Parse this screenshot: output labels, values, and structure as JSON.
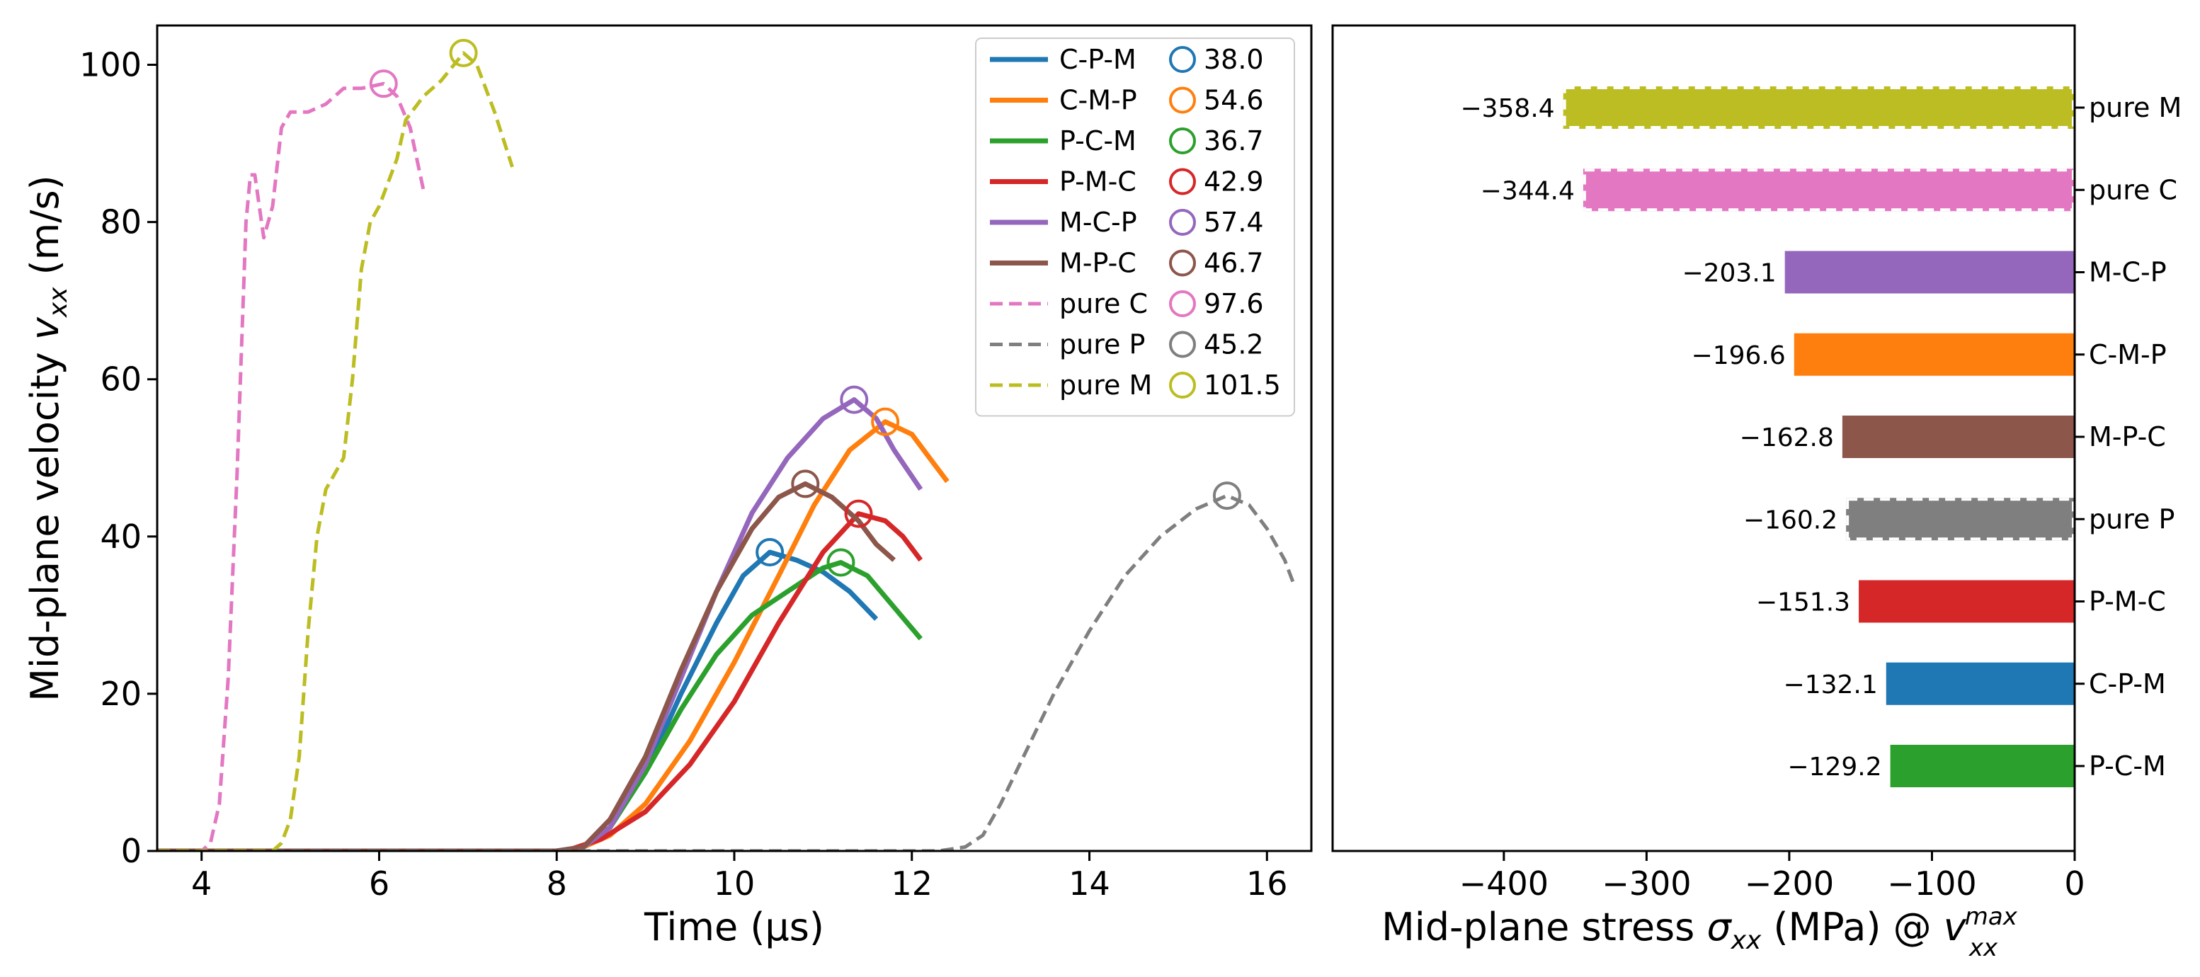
{
  "chart_data": [
    {
      "type": "line",
      "xlabel": "Time (μs)",
      "ylabel_prefix": "Mid-plane velocity ",
      "ylabel_symbol": "v",
      "ylabel_sub": "xx",
      "ylabel_suffix": " (m/s)",
      "xlim": [
        3.5,
        16.5
      ],
      "ylim": [
        0,
        105
      ],
      "xticks": [
        4,
        6,
        8,
        10,
        12,
        14,
        16
      ],
      "yticks": [
        0,
        20,
        40,
        60,
        80,
        100
      ],
      "legend_position": "top-right",
      "series": [
        {
          "name": "C-P-M",
          "color": "#1f77b4",
          "dash": false,
          "peak_label": "38.0",
          "peak": [
            10.4,
            38.0
          ],
          "points": [
            [
              3.5,
              0
            ],
            [
              8.0,
              0
            ],
            [
              8.3,
              0.5
            ],
            [
              8.6,
              3
            ],
            [
              9.0,
              10
            ],
            [
              9.4,
              20
            ],
            [
              9.8,
              29
            ],
            [
              10.1,
              35
            ],
            [
              10.4,
              38
            ],
            [
              10.7,
              37
            ],
            [
              11.0,
              35.5
            ],
            [
              11.3,
              33
            ],
            [
              11.6,
              29.5
            ]
          ]
        },
        {
          "name": "C-M-P",
          "color": "#ff7f0e",
          "dash": false,
          "peak_label": "54.6",
          "peak": [
            11.7,
            54.6
          ],
          "points": [
            [
              3.5,
              0
            ],
            [
              8.2,
              0
            ],
            [
              8.6,
              2
            ],
            [
              9.0,
              6
            ],
            [
              9.5,
              14
            ],
            [
              10.0,
              24
            ],
            [
              10.5,
              35
            ],
            [
              10.9,
              44
            ],
            [
              11.3,
              51
            ],
            [
              11.7,
              54.6
            ],
            [
              12.0,
              53
            ],
            [
              12.2,
              50
            ],
            [
              12.4,
              47
            ]
          ]
        },
        {
          "name": "P-C-M",
          "color": "#2ca02c",
          "dash": false,
          "peak_label": "36.7",
          "peak": [
            11.2,
            36.7
          ],
          "points": [
            [
              3.5,
              0
            ],
            [
              8.0,
              0
            ],
            [
              8.3,
              0.5
            ],
            [
              8.6,
              3
            ],
            [
              9.0,
              10
            ],
            [
              9.4,
              18
            ],
            [
              9.8,
              25
            ],
            [
              10.2,
              30
            ],
            [
              10.6,
              33
            ],
            [
              11.0,
              36
            ],
            [
              11.2,
              36.7
            ],
            [
              11.5,
              35
            ],
            [
              11.8,
              31
            ],
            [
              12.1,
              27
            ]
          ]
        },
        {
          "name": "P-M-C",
          "color": "#d62728",
          "dash": false,
          "peak_label": "42.9",
          "peak": [
            11.4,
            42.9
          ],
          "points": [
            [
              3.5,
              0
            ],
            [
              8.1,
              0
            ],
            [
              8.5,
              1.5
            ],
            [
              9.0,
              5
            ],
            [
              9.5,
              11
            ],
            [
              10.0,
              19
            ],
            [
              10.5,
              29
            ],
            [
              11.0,
              38
            ],
            [
              11.4,
              42.9
            ],
            [
              11.7,
              42
            ],
            [
              11.9,
              40
            ],
            [
              12.1,
              37
            ]
          ]
        },
        {
          "name": "M-C-P",
          "color": "#9467bd",
          "dash": false,
          "peak_label": "57.4",
          "peak": [
            11.35,
            57.4
          ],
          "points": [
            [
              3.5,
              0
            ],
            [
              8.0,
              0
            ],
            [
              8.3,
              0.5
            ],
            [
              8.6,
              3
            ],
            [
              9.0,
              11
            ],
            [
              9.4,
              22
            ],
            [
              9.8,
              33
            ],
            [
              10.2,
              43
            ],
            [
              10.6,
              50
            ],
            [
              11.0,
              55
            ],
            [
              11.35,
              57.4
            ],
            [
              11.6,
              55
            ],
            [
              11.8,
              51
            ],
            [
              12.1,
              46
            ]
          ]
        },
        {
          "name": "M-P-C",
          "color": "#8c564b",
          "dash": false,
          "peak_label": "46.7",
          "peak": [
            10.8,
            46.7
          ],
          "points": [
            [
              3.5,
              0
            ],
            [
              8.0,
              0
            ],
            [
              8.3,
              0.5
            ],
            [
              8.6,
              4
            ],
            [
              9.0,
              12
            ],
            [
              9.4,
              23
            ],
            [
              9.8,
              33
            ],
            [
              10.2,
              41
            ],
            [
              10.5,
              45
            ],
            [
              10.8,
              46.7
            ],
            [
              11.1,
              45
            ],
            [
              11.4,
              42
            ],
            [
              11.6,
              39
            ],
            [
              11.8,
              37
            ]
          ]
        },
        {
          "name": "pure C",
          "color": "#e377c2",
          "dash": true,
          "peak_label": "97.6",
          "peak": [
            6.05,
            97.6
          ],
          "points": [
            [
              3.5,
              0
            ],
            [
              4.0,
              0
            ],
            [
              4.1,
              1
            ],
            [
              4.2,
              6
            ],
            [
              4.3,
              22
            ],
            [
              4.4,
              48
            ],
            [
              4.5,
              80
            ],
            [
              4.55,
              86
            ],
            [
              4.6,
              86
            ],
            [
              4.7,
              78
            ],
            [
              4.8,
              82
            ],
            [
              4.9,
              92
            ],
            [
              5.0,
              94
            ],
            [
              5.2,
              94
            ],
            [
              5.4,
              95
            ],
            [
              5.6,
              97
            ],
            [
              5.8,
              97
            ],
            [
              6.05,
              97.6
            ],
            [
              6.2,
              96
            ],
            [
              6.35,
              92
            ],
            [
              6.5,
              84
            ]
          ]
        },
        {
          "name": "pure P",
          "color": "#7f7f7f",
          "dash": true,
          "peak_label": "45.2",
          "peak": [
            15.55,
            45.2
          ],
          "points": [
            [
              3.5,
              0
            ],
            [
              12.3,
              0
            ],
            [
              12.6,
              0.5
            ],
            [
              12.8,
              2
            ],
            [
              13.0,
              6
            ],
            [
              13.3,
              13
            ],
            [
              13.6,
              20
            ],
            [
              14.0,
              28
            ],
            [
              14.4,
              35
            ],
            [
              14.8,
              40
            ],
            [
              15.2,
              43.5
            ],
            [
              15.55,
              45.2
            ],
            [
              15.8,
              44
            ],
            [
              16.0,
              41
            ],
            [
              16.2,
              37
            ],
            [
              16.3,
              34
            ]
          ]
        },
        {
          "name": "pure M",
          "color": "#bcbd22",
          "dash": true,
          "peak_label": "101.5",
          "peak": [
            6.95,
            101.5
          ],
          "points": [
            [
              3.5,
              0
            ],
            [
              4.8,
              0
            ],
            [
              4.9,
              1
            ],
            [
              5.0,
              4
            ],
            [
              5.1,
              12
            ],
            [
              5.2,
              28
            ],
            [
              5.3,
              40
            ],
            [
              5.4,
              46
            ],
            [
              5.6,
              50
            ],
            [
              5.7,
              60
            ],
            [
              5.8,
              74
            ],
            [
              5.9,
              80
            ],
            [
              6.0,
              82
            ],
            [
              6.2,
              88
            ],
            [
              6.3,
              93
            ],
            [
              6.5,
              96
            ],
            [
              6.7,
              98
            ],
            [
              6.95,
              101.5
            ],
            [
              7.1,
              100
            ],
            [
              7.3,
              94
            ],
            [
              7.5,
              87
            ]
          ]
        }
      ]
    },
    {
      "type": "bar",
      "orientation": "horizontal",
      "xlabel_prefix": "Mid-plane stress ",
      "xlabel_symbol": "σ",
      "xlabel_sub": "xx",
      "xlabel_mid": " (MPa) @ ",
      "xlabel_v": "v",
      "xlabel_v_sub": "xx",
      "xlabel_v_sup": "max",
      "xlim": [
        -520,
        0
      ],
      "xticks": [
        -400,
        -300,
        -200,
        -100,
        0
      ],
      "xtick_labels": [
        "−400",
        "−300",
        "−200",
        "−100",
        "0"
      ],
      "categories": [
        "pure M",
        "pure C",
        "M-C-P",
        "C-M-P",
        "M-P-C",
        "pure P",
        "P-M-C",
        "C-P-M",
        "P-C-M"
      ],
      "values": [
        -358.4,
        -344.4,
        -203.1,
        -196.6,
        -162.8,
        -160.2,
        -151.3,
        -132.1,
        -129.2
      ],
      "value_labels": [
        "−358.4",
        "−344.4",
        "−203.1",
        "−196.6",
        "−162.8",
        "−160.2",
        "−151.3",
        "−132.1",
        "−129.2"
      ],
      "colors": [
        "#bcbd22",
        "#e377c2",
        "#9467bd",
        "#ff7f0e",
        "#8c564b",
        "#7f7f7f",
        "#d62728",
        "#1f77b4",
        "#2ca02c"
      ],
      "dashed_edge": [
        true,
        true,
        false,
        false,
        false,
        true,
        false,
        false,
        false
      ]
    }
  ]
}
